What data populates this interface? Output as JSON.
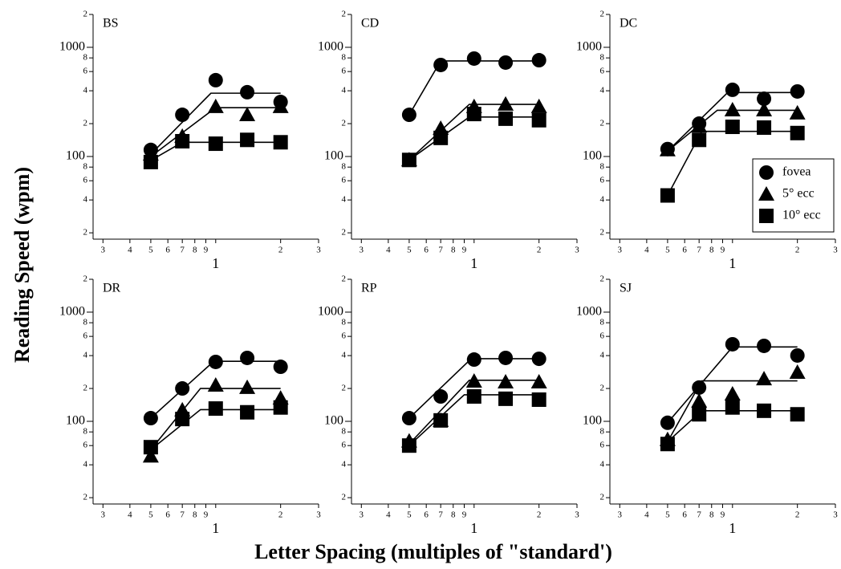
{
  "ylabel": "Reading Speed (wpm)",
  "xlabel": "Letter Spacing (multiples of \"standard')",
  "legend_entries": [
    {
      "name": "fovea",
      "marker": "circle"
    },
    {
      "name": "5° ecc",
      "marker": "triangle"
    },
    {
      "name": "10° ecc",
      "marker": "square"
    }
  ],
  "chart_data": [
    {
      "type": "scatter-fit",
      "title": "BS",
      "log_x": true,
      "log_y": true,
      "color": "#000000",
      "xlim": [
        0.27,
        3
      ],
      "ylim": [
        17.5,
        2000
      ],
      "xticks": [
        {
          "value": 0.3,
          "label": "3"
        },
        {
          "value": 0.4,
          "label": "4"
        },
        {
          "value": 0.5,
          "label": "5"
        },
        {
          "value": 0.6,
          "label": "6"
        },
        {
          "value": 0.7,
          "label": "7"
        },
        {
          "value": 0.8,
          "label": "8"
        },
        {
          "value": 0.9,
          "label": "9"
        },
        1,
        {
          "value": 2,
          "label": "2"
        },
        {
          "value": 3,
          "label": "3"
        }
      ],
      "yticks": [
        {
          "value": 20,
          "label": "2"
        },
        {
          "value": 40,
          "label": "4"
        },
        {
          "value": 60,
          "label": "6"
        },
        {
          "value": 80,
          "label": "8"
        },
        100,
        {
          "value": 200,
          "label": "2"
        },
        {
          "value": 400,
          "label": "4"
        },
        {
          "value": 600,
          "label": "6"
        },
        {
          "value": 800,
          "label": "8"
        },
        1000,
        {
          "value": 2000,
          "label": "2"
        }
      ],
      "x": [
        0.5,
        0.7,
        1,
        1.4,
        2
      ],
      "series": [
        {
          "marker": "circle",
          "values": [
            115,
            241,
            500,
            388,
            316
          ],
          "fit": {
            "x": [
              0.5,
              0.95,
              2
            ],
            "y": [
              105,
              380,
              380
            ]
          }
        },
        {
          "marker": "triangle",
          "values": [
            105,
            153,
            286,
            241,
            286
          ],
          "fit": {
            "x": [
              0.5,
              1,
              2
            ],
            "y": [
              100,
              280,
              280
            ]
          }
        },
        {
          "marker": "square",
          "values": [
            89,
            138,
            131,
            142,
            135
          ],
          "fit": {
            "x": [
              0.5,
              0.7,
              2
            ],
            "y": [
              92,
              135,
              135
            ]
          }
        }
      ]
    },
    {
      "type": "scatter-fit",
      "title": "CD",
      "log_x": true,
      "log_y": true,
      "color": "#000000",
      "xlim": [
        0.27,
        3
      ],
      "ylim": [
        17.5,
        2000
      ],
      "xticks": [
        {
          "value": 0.3,
          "label": "3"
        },
        {
          "value": 0.4,
          "label": "4"
        },
        {
          "value": 0.5,
          "label": "5"
        },
        {
          "value": 0.6,
          "label": "6"
        },
        {
          "value": 0.7,
          "label": "7"
        },
        {
          "value": 0.8,
          "label": "8"
        },
        {
          "value": 0.9,
          "label": "9"
        },
        1,
        {
          "value": 2,
          "label": "2"
        },
        {
          "value": 3,
          "label": "3"
        }
      ],
      "yticks": [
        {
          "value": 20,
          "label": "2"
        },
        {
          "value": 40,
          "label": "4"
        },
        {
          "value": 60,
          "label": "6"
        },
        {
          "value": 80,
          "label": "8"
        },
        100,
        {
          "value": 200,
          "label": "2"
        },
        {
          "value": 400,
          "label": "4"
        },
        {
          "value": 600,
          "label": "6"
        },
        {
          "value": 800,
          "label": "8"
        },
        1000,
        {
          "value": 2000,
          "label": "2"
        }
      ],
      "x": [
        0.5,
        0.7,
        1,
        1.4,
        2
      ],
      "series": [
        {
          "marker": "circle",
          "values": [
            241,
            689,
            789,
            725,
            762
          ],
          "fit": {
            "x": [
              0.5,
              0.7,
              2
            ],
            "y": [
              241,
              750,
              750
            ]
          }
        },
        {
          "marker": "triangle",
          "values": [
            93,
            181,
            286,
            301,
            286
          ],
          "fit": {
            "x": [
              0.5,
              0.95,
              2
            ],
            "y": [
              93,
              300,
              300
            ]
          }
        },
        {
          "marker": "square",
          "values": [
            93,
            148,
            245,
            222,
            215
          ],
          "fit": {
            "x": [
              0.5,
              0.95,
              2
            ],
            "y": [
              93,
              230,
              230
            ]
          }
        }
      ]
    },
    {
      "type": "scatter-fit",
      "title": "DC",
      "log_x": true,
      "log_y": true,
      "color": "#000000",
      "legend": "lower right",
      "xlim": [
        0.27,
        3
      ],
      "ylim": [
        17.5,
        2000
      ],
      "xticks": [
        {
          "value": 0.3,
          "label": "3"
        },
        {
          "value": 0.4,
          "label": "4"
        },
        {
          "value": 0.5,
          "label": "5"
        },
        {
          "value": 0.6,
          "label": "6"
        },
        {
          "value": 0.7,
          "label": "7"
        },
        {
          "value": 0.8,
          "label": "8"
        },
        {
          "value": 0.9,
          "label": "9"
        },
        1,
        {
          "value": 2,
          "label": "2"
        },
        {
          "value": 3,
          "label": "3"
        }
      ],
      "yticks": [
        {
          "value": 20,
          "label": "2"
        },
        {
          "value": 40,
          "label": "4"
        },
        {
          "value": 60,
          "label": "6"
        },
        {
          "value": 80,
          "label": "8"
        },
        100,
        {
          "value": 200,
          "label": "2"
        },
        {
          "value": 400,
          "label": "4"
        },
        {
          "value": 600,
          "label": "6"
        },
        {
          "value": 800,
          "label": "8"
        },
        1000,
        {
          "value": 2000,
          "label": "2"
        }
      ],
      "x": [
        0.5,
        0.7,
        1,
        1.4,
        2
      ],
      "series": [
        {
          "marker": "circle",
          "values": [
            117,
            200,
            408,
            338,
            394
          ],
          "fit": {
            "x": [
              0.5,
              0.95,
              2
            ],
            "y": [
              112,
              385,
              385
            ]
          }
        },
        {
          "marker": "triangle",
          "values": [
            115,
            190,
            267,
            267,
            250
          ],
          "fit": {
            "x": [
              0.5,
              0.85,
              2
            ],
            "y": [
              112,
              265,
              265
            ]
          }
        },
        {
          "marker": "square",
          "values": [
            44,
            142,
            187,
            184,
            164
          ],
          "fit": {
            "x": [
              0.5,
              0.72,
              2
            ],
            "y": [
              44,
              170,
              170
            ]
          }
        }
      ]
    },
    {
      "type": "scatter-fit",
      "title": "DR",
      "log_x": true,
      "log_y": true,
      "color": "#000000",
      "xlim": [
        0.27,
        3
      ],
      "ylim": [
        17.5,
        2000
      ],
      "xticks": [
        {
          "value": 0.3,
          "label": "3"
        },
        {
          "value": 0.4,
          "label": "4"
        },
        {
          "value": 0.5,
          "label": "5"
        },
        {
          "value": 0.6,
          "label": "6"
        },
        {
          "value": 0.7,
          "label": "7"
        },
        {
          "value": 0.8,
          "label": "8"
        },
        {
          "value": 0.9,
          "label": "9"
        },
        1,
        {
          "value": 2,
          "label": "2"
        },
        {
          "value": 3,
          "label": "3"
        }
      ],
      "yticks": [
        {
          "value": 20,
          "label": "2"
        },
        {
          "value": 40,
          "label": "4"
        },
        {
          "value": 60,
          "label": "6"
        },
        {
          "value": 80,
          "label": "8"
        },
        100,
        {
          "value": 200,
          "label": "2"
        },
        {
          "value": 400,
          "label": "4"
        },
        {
          "value": 600,
          "label": "6"
        },
        {
          "value": 800,
          "label": "8"
        },
        1000,
        {
          "value": 2000,
          "label": "2"
        }
      ],
      "x": [
        0.5,
        0.7,
        1,
        1.4,
        2
      ],
      "series": [
        {
          "marker": "circle",
          "values": [
            107,
            200,
            350,
            381,
            316
          ],
          "fit": {
            "x": [
              0.5,
              0.98,
              2
            ],
            "y": [
              107,
              355,
              355
            ]
          }
        },
        {
          "marker": "triangle",
          "values": [
            48,
            127,
            214,
            204,
            163
          ],
          "fit": {
            "x": [
              0.5,
              0.85,
              2
            ],
            "y": [
              55,
              200,
              200
            ]
          }
        },
        {
          "marker": "square",
          "values": [
            58,
            105,
            131,
            121,
            134
          ],
          "fit": {
            "x": [
              0.5,
              0.85,
              2
            ],
            "y": [
              55,
              128,
              128
            ]
          }
        }
      ]
    },
    {
      "type": "scatter-fit",
      "title": "RP",
      "log_x": true,
      "log_y": true,
      "color": "#000000",
      "xlim": [
        0.27,
        3
      ],
      "ylim": [
        17.5,
        2000
      ],
      "xticks": [
        {
          "value": 0.3,
          "label": "3"
        },
        {
          "value": 0.4,
          "label": "4"
        },
        {
          "value": 0.5,
          "label": "5"
        },
        {
          "value": 0.6,
          "label": "6"
        },
        {
          "value": 0.7,
          "label": "7"
        },
        {
          "value": 0.8,
          "label": "8"
        },
        {
          "value": 0.9,
          "label": "9"
        },
        1,
        {
          "value": 2,
          "label": "2"
        },
        {
          "value": 3,
          "label": "3"
        }
      ],
      "yticks": [
        {
          "value": 20,
          "label": "2"
        },
        {
          "value": 40,
          "label": "4"
        },
        {
          "value": 60,
          "label": "6"
        },
        {
          "value": 80,
          "label": "8"
        },
        100,
        {
          "value": 200,
          "label": "2"
        },
        {
          "value": 400,
          "label": "4"
        },
        {
          "value": 600,
          "label": "6"
        },
        {
          "value": 800,
          "label": "8"
        },
        1000,
        {
          "value": 2000,
          "label": "2"
        }
      ],
      "x": [
        0.5,
        0.7,
        1,
        1.4,
        2
      ],
      "series": [
        {
          "marker": "circle",
          "values": [
            107,
            169,
            368,
            381,
            374
          ],
          "fit": {
            "x": [
              0.5,
              0.97,
              2
            ],
            "y": [
              107,
              375,
              375
            ]
          }
        },
        {
          "marker": "triangle",
          "values": [
            66,
            102,
            233,
            229,
            229
          ],
          "fit": {
            "x": [
              0.5,
              0.95,
              2
            ],
            "y": [
              62,
              238,
              238
            ]
          }
        },
        {
          "marker": "square",
          "values": [
            60,
            102,
            169,
            161,
            158
          ],
          "fit": {
            "x": [
              0.5,
              0.9,
              2
            ],
            "y": [
              60,
              175,
              175
            ]
          }
        }
      ]
    },
    {
      "type": "scatter-fit",
      "title": "SJ",
      "log_x": true,
      "log_y": true,
      "color": "#000000",
      "xlim": [
        0.27,
        3
      ],
      "ylim": [
        17.5,
        2000
      ],
      "xticks": [
        {
          "value": 0.3,
          "label": "3"
        },
        {
          "value": 0.4,
          "label": "4"
        },
        {
          "value": 0.5,
          "label": "5"
        },
        {
          "value": 0.6,
          "label": "6"
        },
        {
          "value": 0.7,
          "label": "7"
        },
        {
          "value": 0.8,
          "label": "8"
        },
        {
          "value": 0.9,
          "label": "9"
        },
        1,
        {
          "value": 2,
          "label": "2"
        },
        {
          "value": 3,
          "label": "3"
        }
      ],
      "yticks": [
        {
          "value": 20,
          "label": "2"
        },
        {
          "value": 40,
          "label": "4"
        },
        {
          "value": 60,
          "label": "6"
        },
        {
          "value": 80,
          "label": "8"
        },
        100,
        {
          "value": 200,
          "label": "2"
        },
        {
          "value": 400,
          "label": "4"
        },
        {
          "value": 600,
          "label": "6"
        },
        {
          "value": 800,
          "label": "8"
        },
        1000,
        {
          "value": 2000,
          "label": "2"
        }
      ],
      "x": [
        0.5,
        0.7,
        1,
        1.4,
        2
      ],
      "series": [
        {
          "marker": "circle",
          "values": [
            97,
            204,
            508,
            491,
            401
          ],
          "fit": {
            "x": [
              0.5,
              1,
              2
            ],
            "y": [
              97,
              480,
              480
            ]
          }
        },
        {
          "marker": "triangle",
          "values": [
            68,
            153,
            178,
            245,
            281
          ],
          "fit": {
            "x": [
              0.5,
              0.72,
              2
            ],
            "y": [
              65,
              235,
              235
            ]
          }
        },
        {
          "marker": "square",
          "values": [
            62,
            116,
            134,
            125,
            116
          ],
          "fit": {
            "x": [
              0.5,
              0.72,
              2
            ],
            "y": [
              65,
              125,
              125
            ]
          }
        }
      ]
    }
  ]
}
